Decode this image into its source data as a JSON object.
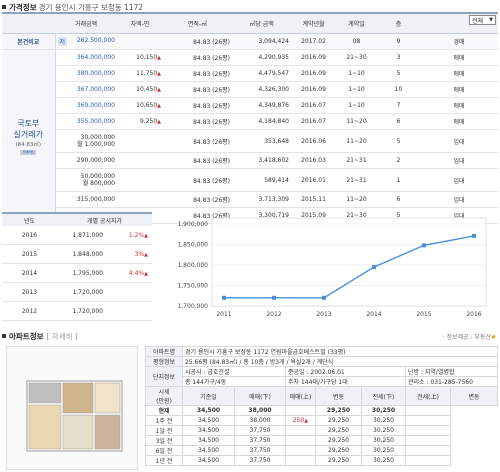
{
  "price_section": {
    "title": "가격정보",
    "address": "경기 용인시 기흥구 보정동 1172",
    "dropdown_value": "전체",
    "columns": [
      "거래금액",
      "차액-만",
      "면적-㎡",
      "㎡당 금액",
      "계약년월",
      "계약일",
      "층"
    ],
    "compare_label": "본건비교",
    "compare_row": {
      "badge": "저",
      "price": "262,500,000",
      "diff": "",
      "area": "84.83 (26평)",
      "per": "3,094,424",
      "ym": "2017.02",
      "day": "08",
      "floor": "9",
      "type": "경매"
    },
    "side_label_1": "국토부",
    "side_label_2": "실거래가",
    "side_label_3": "(84.83㎡)",
    "side_badge": "전세버튼",
    "rows": [
      {
        "price": "364,000,000",
        "diff": "10,150",
        "area": "84.83 (26평)",
        "per": "4,290,935",
        "ym": "2016.09",
        "day": "21~30",
        "floor": "3",
        "type": "매매"
      },
      {
        "price": "380,000,000",
        "diff": "11,750",
        "area": "84.83 (26평)",
        "per": "4,479,547",
        "ym": "2016.09",
        "day": "1~10",
        "floor": "5",
        "type": "매매"
      },
      {
        "price": "367,000,000",
        "diff": "10,450",
        "area": "84.83 (26평)",
        "per": "4,326,300",
        "ym": "2016.09",
        "day": "1~10",
        "floor": "10",
        "type": "매매"
      },
      {
        "price": "369,000,000",
        "diff": "10,650",
        "area": "84.83 (26평)",
        "per": "4,349,876",
        "ym": "2016.07",
        "day": "1~10",
        "floor": "7",
        "type": "매매"
      },
      {
        "price": "355,000,000",
        "diff": "9,250",
        "area": "84.83 (26평)",
        "per": "4,184,840",
        "ym": "2016.07",
        "day": "11~20",
        "floor": "6",
        "type": "매매"
      },
      {
        "price": "30,000,000\n월 1,000,000",
        "diff": "",
        "area": "84.83 (26평)",
        "per": "353,648",
        "ym": "2016.06",
        "day": "11~20",
        "floor": "5",
        "type": "임대"
      },
      {
        "price": "290,000,000",
        "diff": "",
        "area": "84.83 (26평)",
        "per": "3,418,602",
        "ym": "2016.03",
        "day": "21~31",
        "floor": "2",
        "type": "임대"
      },
      {
        "price": "50,000,000\n월 800,000",
        "diff": "",
        "area": "84.83 (26평)",
        "per": "589,414",
        "ym": "2016.01",
        "day": "21~31",
        "floor": "1",
        "type": "임대"
      },
      {
        "price": "315,000,000",
        "diff": "",
        "area": "84.83 (26평)",
        "per": "3,713,309",
        "ym": "2015.11",
        "day": "11~20",
        "floor": "6",
        "type": "임대"
      },
      {
        "price": "280,000,000",
        "diff": "",
        "area": "84.83 (26평)",
        "per": "3,300,719",
        "ym": "2015.09",
        "day": "21~30",
        "floor": "5",
        "type": "임대"
      }
    ]
  },
  "official": {
    "col_year": "년도",
    "col_price": "개별 공시지가",
    "rows": [
      {
        "year": "2016",
        "price": "1,871,000",
        "pct": "1.2%"
      },
      {
        "year": "2015",
        "price": "1,848,000",
        "pct": "3%"
      },
      {
        "year": "2014",
        "price": "1,795,000",
        "pct": "4.4%"
      },
      {
        "year": "2013",
        "price": "1,720,000",
        "pct": ""
      },
      {
        "year": "2012",
        "price": "1,720,000",
        "pct": ""
      }
    ]
  },
  "chart_data": {
    "type": "line",
    "x": [
      "2011",
      "2012",
      "2013",
      "2014",
      "2015",
      "2016"
    ],
    "series": [
      {
        "values": [
          1720000,
          1720000,
          1720000,
          1795000,
          1848000,
          1871000
        ]
      }
    ],
    "yticks": [
      "1,700,000",
      "1,750,000",
      "1,800,000",
      "1,850,000",
      "1,900,000"
    ],
    "ylim": [
      1700000,
      1900000
    ],
    "color": "#4a90d9"
  },
  "apt_section": {
    "title": "아파트정보",
    "link": "[ 자세히 ]",
    "credit": "· 정보제공 : 부동산",
    "rows": [
      {
        "h": "아파트명",
        "v": "경기 용인시 기흥구 보정동 1172 연원마을금호베스트빌 (33평)"
      },
      {
        "h": "평형정보",
        "v": "25.66평 (84.83㎡) / 총 10층 / 방3개 / 욕실2개 / 계단식"
      }
    ],
    "complex_label": "단지정보",
    "complex": {
      "builder_h": "시공사 : 금호건설",
      "date_h": "준공일 : 2002.06.01",
      "heat_h": "난방 : 지역/열병합",
      "units": "총 144가구/4동",
      "parking": "주차 144대/가구당 1대",
      "office": "관리소 : 031-285-7560"
    },
    "market_label": "시세\n(만원)",
    "market_cols": [
      "기준일",
      "매매(下)",
      "매매(上)",
      "변동",
      "전세(下)",
      "전세(上)",
      "변동"
    ],
    "market_rows": [
      {
        "d": "현재",
        "a": "34,500",
        "b": "38,000",
        "c": "",
        "e": "29,250",
        "f": "30,250",
        "g": ""
      },
      {
        "d": "1주 전",
        "a": "34,500",
        "b": "38,000",
        "c": "250",
        "e": "29,250",
        "f": "30,250",
        "g": ""
      },
      {
        "d": "1일 전",
        "a": "34,500",
        "b": "37,750",
        "c": "",
        "e": "29,250",
        "f": "30,250",
        "g": ""
      },
      {
        "d": "3일 전",
        "a": "34,500",
        "b": "37,750",
        "c": "",
        "e": "29,250",
        "f": "30,250",
        "g": ""
      },
      {
        "d": "6일 전",
        "a": "34,500",
        "b": "37,750",
        "c": "",
        "e": "29,250",
        "f": "30,250",
        "g": ""
      },
      {
        "d": "1년 전",
        "a": "34,500",
        "b": "37,750",
        "c": "",
        "e": "29,250",
        "f": "30,250",
        "g": ""
      }
    ]
  }
}
